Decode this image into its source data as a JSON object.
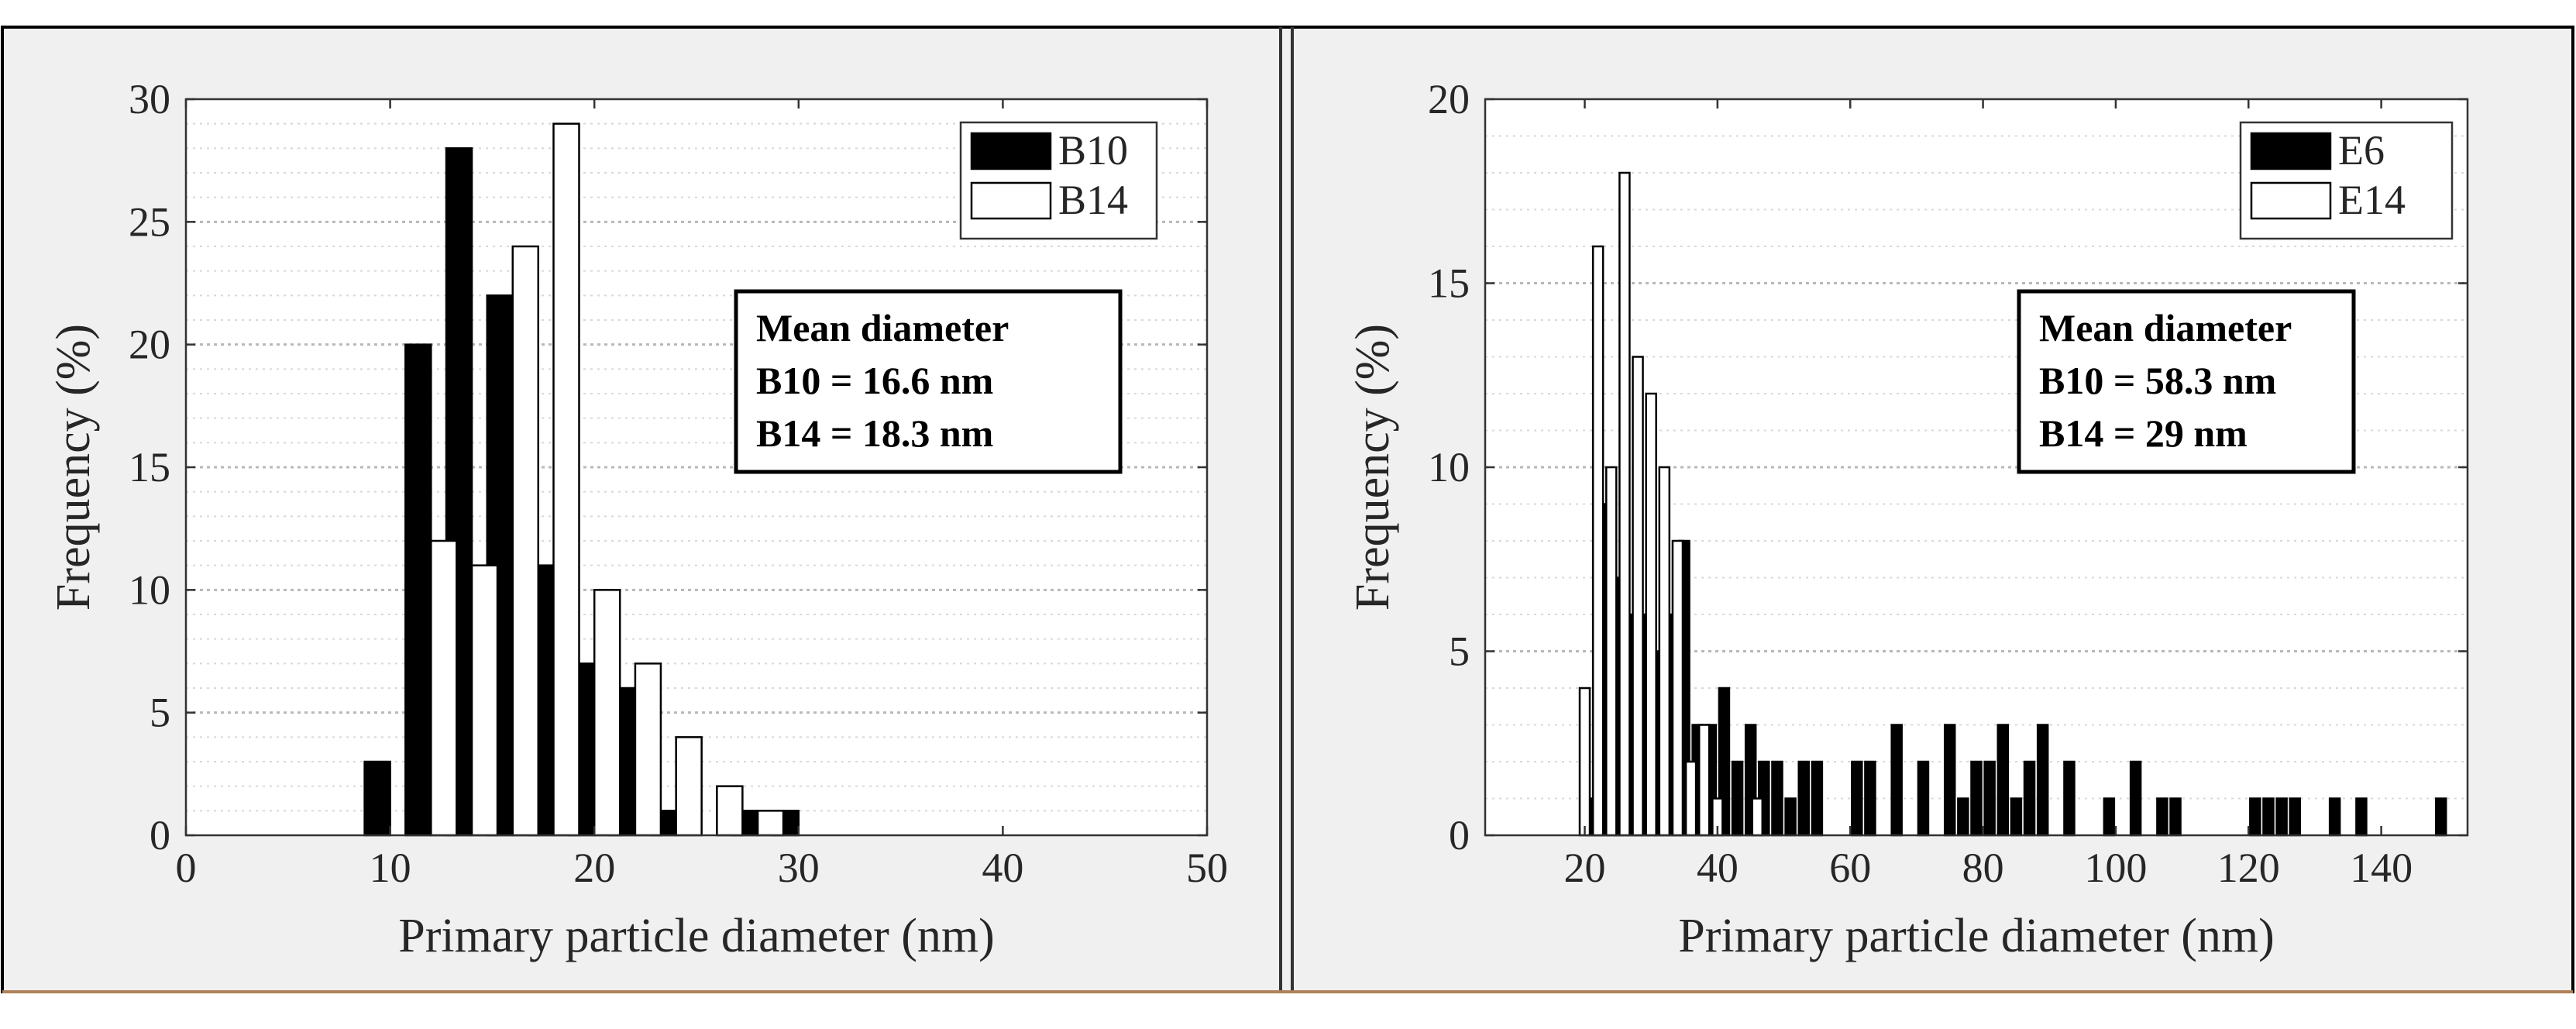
{
  "chart_data": [
    {
      "type": "bar",
      "xlabel": "Primary particle diameter (nm)",
      "ylabel": "Frequency (%)",
      "xlim": [
        0,
        50
      ],
      "ylim": [
        0,
        30
      ],
      "xticks": [
        0,
        10,
        20,
        30,
        40,
        50
      ],
      "yticks": [
        0,
        5,
        10,
        15,
        20,
        25,
        30
      ],
      "grid": "horizontal dotted",
      "legend": "top-right",
      "series": [
        {
          "name": "B10",
          "color": "#000000",
          "x": [
            10,
            12,
            14,
            16,
            18,
            20,
            22,
            24,
            28,
            30
          ],
          "values": [
            3,
            20,
            28,
            22,
            11,
            7,
            6,
            1,
            1,
            1
          ]
        },
        {
          "name": "B14",
          "color": "#ffffff",
          "x": [
            12,
            14,
            16,
            18,
            20,
            22,
            24,
            26,
            28
          ],
          "values": [
            12,
            11,
            24,
            29,
            10,
            7,
            4,
            2,
            1
          ]
        }
      ],
      "annotation": [
        "Mean diameter",
        "B10 = 16.6 nm",
        "B14 = 18.3 nm"
      ]
    },
    {
      "type": "bar",
      "xlabel": "Primary particle diameter (nm)",
      "ylabel": "Frequency (%)",
      "xlim": [
        5,
        153
      ],
      "ylim": [
        0,
        20
      ],
      "xticks": [
        20,
        40,
        60,
        80,
        100,
        120,
        140
      ],
      "yticks": [
        0,
        5,
        10,
        15,
        20
      ],
      "grid": "horizontal dotted",
      "legend": "top-right",
      "series": [
        {
          "name": "E6",
          "color": "#000000",
          "x": [
            21,
            23,
            25,
            27,
            29,
            31,
            33,
            35,
            37,
            39,
            41,
            43,
            45,
            47,
            49,
            51,
            53,
            55,
            61,
            63,
            67,
            71,
            75,
            77,
            79,
            81,
            83,
            85,
            87,
            89,
            93,
            99,
            103,
            107,
            109,
            121,
            123,
            125,
            127,
            133,
            137,
            149
          ],
          "values": [
            1,
            9,
            7,
            6,
            6,
            5,
            6,
            8,
            3,
            3,
            4,
            2,
            3,
            2,
            2,
            1,
            2,
            2,
            2,
            2,
            3,
            2,
            3,
            1,
            2,
            2,
            3,
            1,
            2,
            3,
            2,
            1,
            2,
            1,
            1,
            1,
            1,
            1,
            1,
            1,
            1,
            1
          ]
        },
        {
          "name": "E14",
          "color": "#ffffff",
          "x": [
            20,
            22,
            24,
            26,
            28,
            30,
            32,
            34,
            36,
            38,
            40,
            42,
            44,
            46
          ],
          "values": [
            4,
            16,
            10,
            18,
            13,
            12,
            10,
            8,
            2,
            3,
            1,
            0,
            0,
            1
          ]
        }
      ],
      "annotation": [
        "Mean diameter",
        "B10 = 58.3 nm",
        "B14 = 29 nm"
      ]
    }
  ]
}
